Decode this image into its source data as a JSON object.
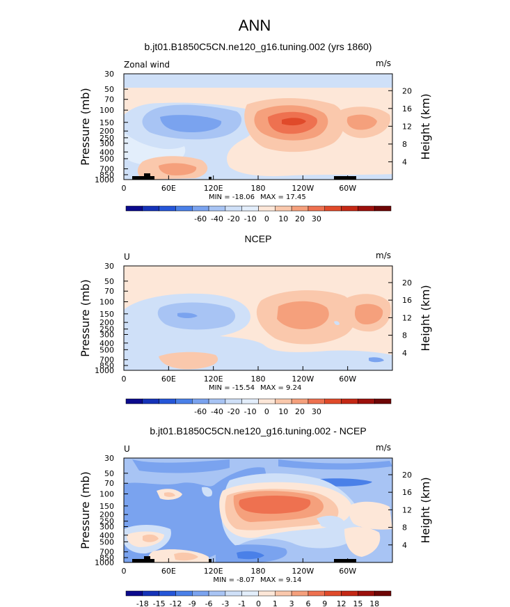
{
  "chart_data": [
    {
      "type": "heatmap",
      "title": "b.jt01.B1850C5CN.ne120_g16.tuning.002 (yrs 1860)",
      "left_label": "Zonal wind",
      "units": "m/s",
      "ylabel": "Pressure (mb)",
      "ylabel_right": "Height (km)",
      "x_ticks": [
        "0",
        "60E",
        "120E",
        "180",
        "120W",
        "60W"
      ],
      "y_ticks": [
        "30",
        "50",
        "70",
        "100",
        "150",
        "200",
        "250",
        "300",
        "400",
        "500",
        "700",
        "850",
        "1000"
      ],
      "height_ticks": [
        "20",
        "16",
        "12",
        "8",
        "4"
      ],
      "min_label": "MIN = -18.06",
      "max_label": "MAX = 17.45",
      "min": -18.06,
      "max": 17.45,
      "colorbar_labels": [
        "-60",
        "-40",
        "-20",
        "-10",
        "0",
        "10",
        "20",
        "30"
      ]
    },
    {
      "type": "heatmap",
      "title": "NCEP",
      "left_label": "U",
      "units": "m/s",
      "ylabel": "Pressure (mb)",
      "ylabel_right": "Height (km)",
      "x_ticks": [
        "0",
        "60E",
        "120E",
        "180",
        "120W",
        "60W"
      ],
      "y_ticks": [
        "30",
        "50",
        "70",
        "100",
        "150",
        "200",
        "250",
        "300",
        "400",
        "500",
        "700",
        "850",
        "1000"
      ],
      "height_ticks": [
        "20",
        "16",
        "12",
        "8",
        "4"
      ],
      "min_label": "MIN = -15.54",
      "max_label": "MAX = 9.24",
      "min": -15.54,
      "max": 9.24,
      "colorbar_labels": [
        "-60",
        "-40",
        "-20",
        "-10",
        "0",
        "10",
        "20",
        "30"
      ]
    },
    {
      "type": "heatmap",
      "title": "b.jt01.B1850C5CN.ne120_g16.tuning.002 - NCEP",
      "left_label": "U",
      "units": "m/s",
      "ylabel": "Pressure (mb)",
      "ylabel_right": "Height (km)",
      "x_ticks": [
        "0",
        "60E",
        "120E",
        "180",
        "120W",
        "60W"
      ],
      "y_ticks": [
        "30",
        "50",
        "70",
        "100",
        "150",
        "200",
        "250",
        "300",
        "400",
        "500",
        "700",
        "850",
        "1000"
      ],
      "height_ticks": [
        "20",
        "16",
        "12",
        "8",
        "4"
      ],
      "min_label": "MIN = -8.07",
      "max_label": "MAX = 9.14",
      "min": -8.07,
      "max": 9.14,
      "colorbar_labels": [
        "-18",
        "-15",
        "-12",
        "-9",
        "-6",
        "-3",
        "-1",
        "0",
        "1",
        "3",
        "6",
        "9",
        "12",
        "15",
        "18"
      ]
    }
  ],
  "page": {
    "title": "ANN"
  },
  "colors": {
    "scale": [
      "#0b0a8c",
      "#1533b8",
      "#2556d8",
      "#4a80e8",
      "#7aa3ef",
      "#a8c4f4",
      "#cfe0f8",
      "#e3eefb",
      "#fde7d8",
      "#fac8ac",
      "#f5a07c",
      "#ee7150",
      "#e04a2a",
      "#c42815",
      "#9c100c",
      "#6e0606"
    ]
  }
}
